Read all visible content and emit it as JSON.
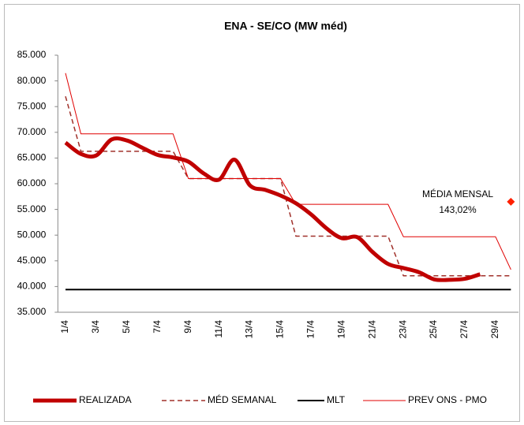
{
  "chart_data": {
    "type": "line",
    "title": "ENA - SE/CO (MW méd)",
    "categories": [
      "1/4",
      null,
      "3/4",
      null,
      "5/4",
      null,
      "7/4",
      null,
      "9/4",
      null,
      "11/4",
      null,
      "13/4",
      null,
      "15/4",
      null,
      "17/4",
      null,
      "19/4",
      null,
      "21/4",
      null,
      "23/4",
      null,
      "25/4",
      null,
      "27/4",
      null,
      "29/4",
      null
    ],
    "series": [
      {
        "name": "REALIZADA",
        "color": "#c00000",
        "style": "thick-smooth",
        "values": [
          68000,
          65800,
          65500,
          68600,
          68400,
          67000,
          65600,
          65100,
          64300,
          62000,
          60800,
          64700,
          59700,
          58800,
          57700,
          56200,
          54000,
          51300,
          49400,
          49600,
          46700,
          44400,
          43600,
          42800,
          41400,
          41300,
          41500,
          42400,
          null,
          null
        ]
      },
      {
        "name": "MÉD SEMANAL",
        "color": "#a0302a",
        "style": "dashed",
        "values": [
          77000,
          66300,
          66300,
          66300,
          66300,
          66300,
          66300,
          66300,
          61000,
          61000,
          61000,
          61000,
          61000,
          61000,
          61000,
          49800,
          49800,
          49800,
          49800,
          49800,
          49800,
          49800,
          42100,
          42100,
          42100,
          42100,
          42100,
          42100,
          42100,
          42100
        ]
      },
      {
        "name": "MLT",
        "color": "#000000",
        "style": "solid",
        "values": [
          39400,
          39400,
          39400,
          39400,
          39400,
          39400,
          39400,
          39400,
          39400,
          39400,
          39400,
          39400,
          39400,
          39400,
          39400,
          39400,
          39400,
          39400,
          39400,
          39400,
          39400,
          39400,
          39400,
          39400,
          39400,
          39400,
          39400,
          39400,
          39400,
          39400
        ]
      },
      {
        "name": "PREV ONS - PMO",
        "color": "#e00000",
        "style": "thin",
        "values": [
          81500,
          69700,
          69700,
          69700,
          69700,
          69700,
          69700,
          69700,
          61000,
          61000,
          61000,
          61000,
          61000,
          61000,
          61000,
          56000,
          56000,
          56000,
          56000,
          56000,
          56000,
          56000,
          49700,
          49700,
          49700,
          49700,
          49700,
          49700,
          49700,
          43300
        ]
      }
    ],
    "annotation": {
      "text": "MÉDIA MENSAL",
      "value_label": "143,02%",
      "marker_value": 56500,
      "color": "#ff2000"
    },
    "ylim": [
      35000,
      85000
    ],
    "yticks": [
      {
        "value": 35000,
        "label": "35.000"
      },
      {
        "value": 40000,
        "label": "40.000"
      },
      {
        "value": 45000,
        "label": "45.000"
      },
      {
        "value": 50000,
        "label": "50.000"
      },
      {
        "value": 55000,
        "label": "55.000"
      },
      {
        "value": 60000,
        "label": "60.000"
      },
      {
        "value": 65000,
        "label": "65.000"
      },
      {
        "value": 70000,
        "label": "70.000"
      },
      {
        "value": 75000,
        "label": "75.000"
      },
      {
        "value": 80000,
        "label": "80.000"
      },
      {
        "value": 85000,
        "label": "85.000"
      }
    ],
    "grid": false,
    "legend": "bottom"
  }
}
